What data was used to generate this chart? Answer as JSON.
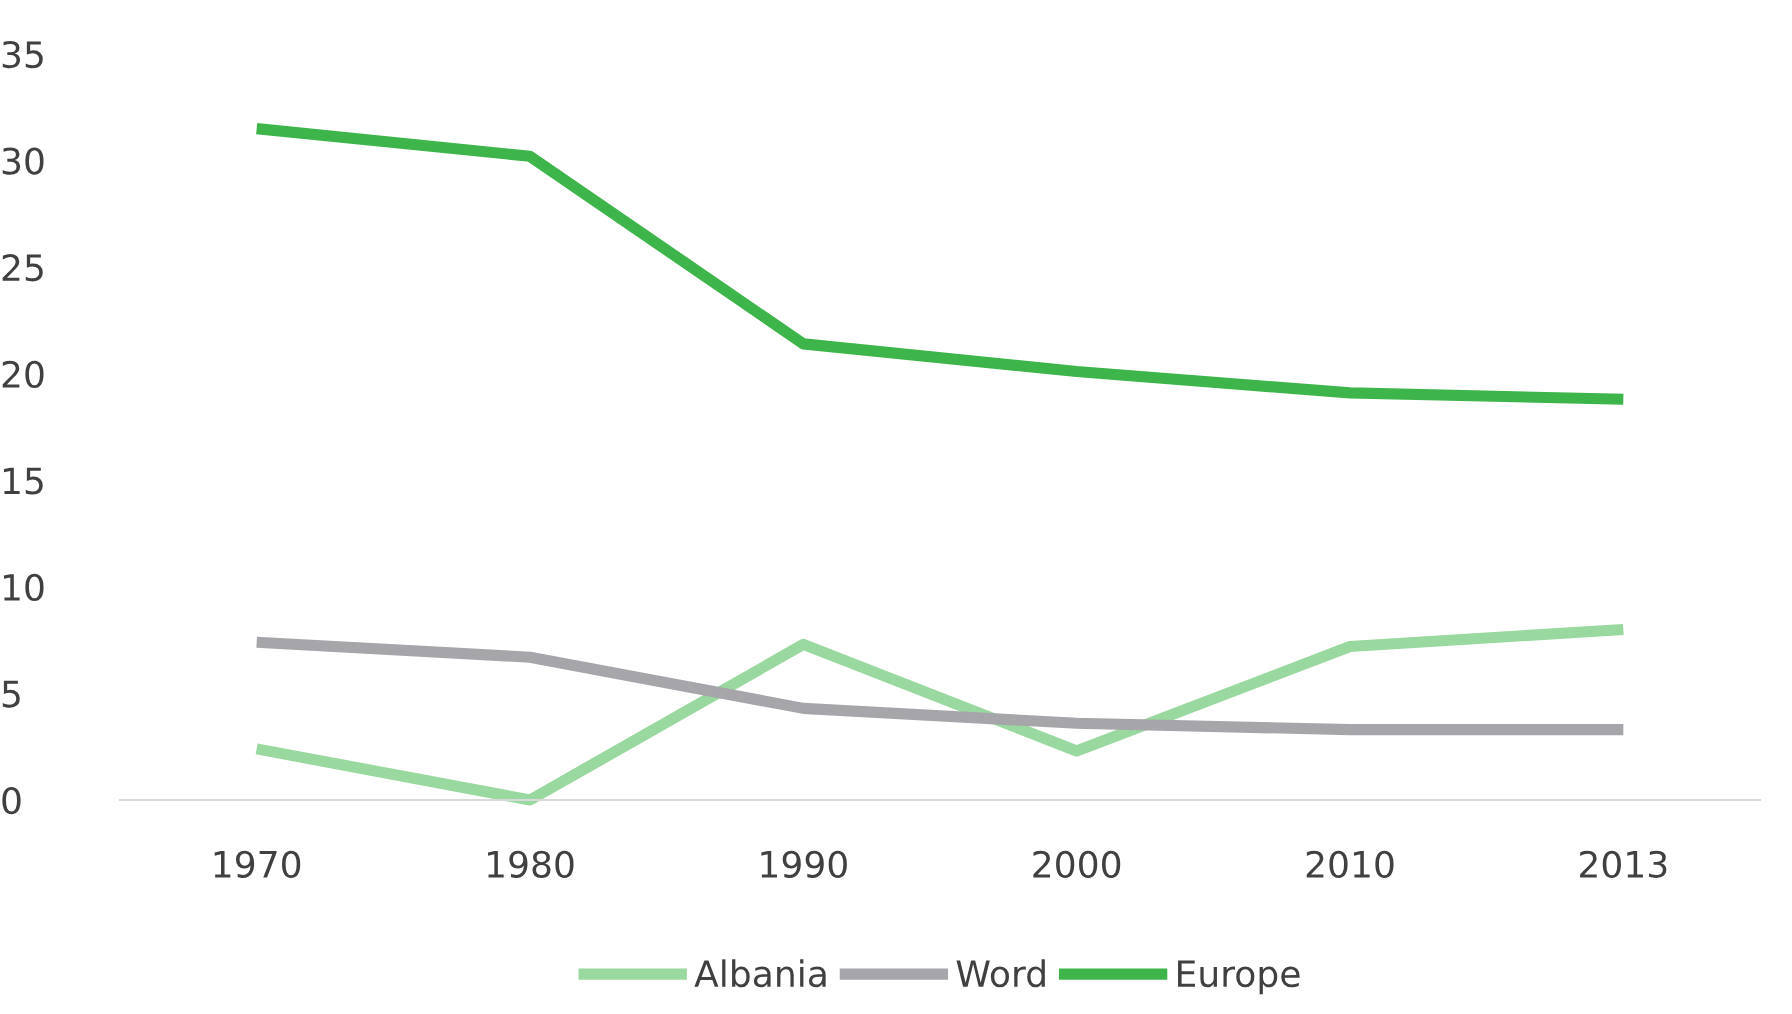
{
  "chart_data": {
    "type": "line",
    "categories": [
      "1970",
      "1980",
      "1990",
      "2000",
      "2010",
      "2013"
    ],
    "series": [
      {
        "name": "Albania",
        "color": "#99d89e",
        "values": [
          2.4,
          0,
          7.3,
          2.3,
          7.2,
          8.0
        ]
      },
      {
        "name": "Word",
        "color": "#a6a5aa",
        "values": [
          7.4,
          6.7,
          4.3,
          3.6,
          3.3,
          3.3
        ]
      },
      {
        "name": "Europe",
        "color": "#3db54a",
        "values": [
          31.5,
          30.2,
          21.4,
          20.1,
          19.1,
          18.8
        ]
      }
    ],
    "ylim": [
      0,
      35
    ],
    "yticks": [
      0,
      5,
      10,
      15,
      20,
      25,
      30,
      35
    ],
    "grid": false,
    "legend": "bottom",
    "marker": "none",
    "line_style": "solid"
  }
}
